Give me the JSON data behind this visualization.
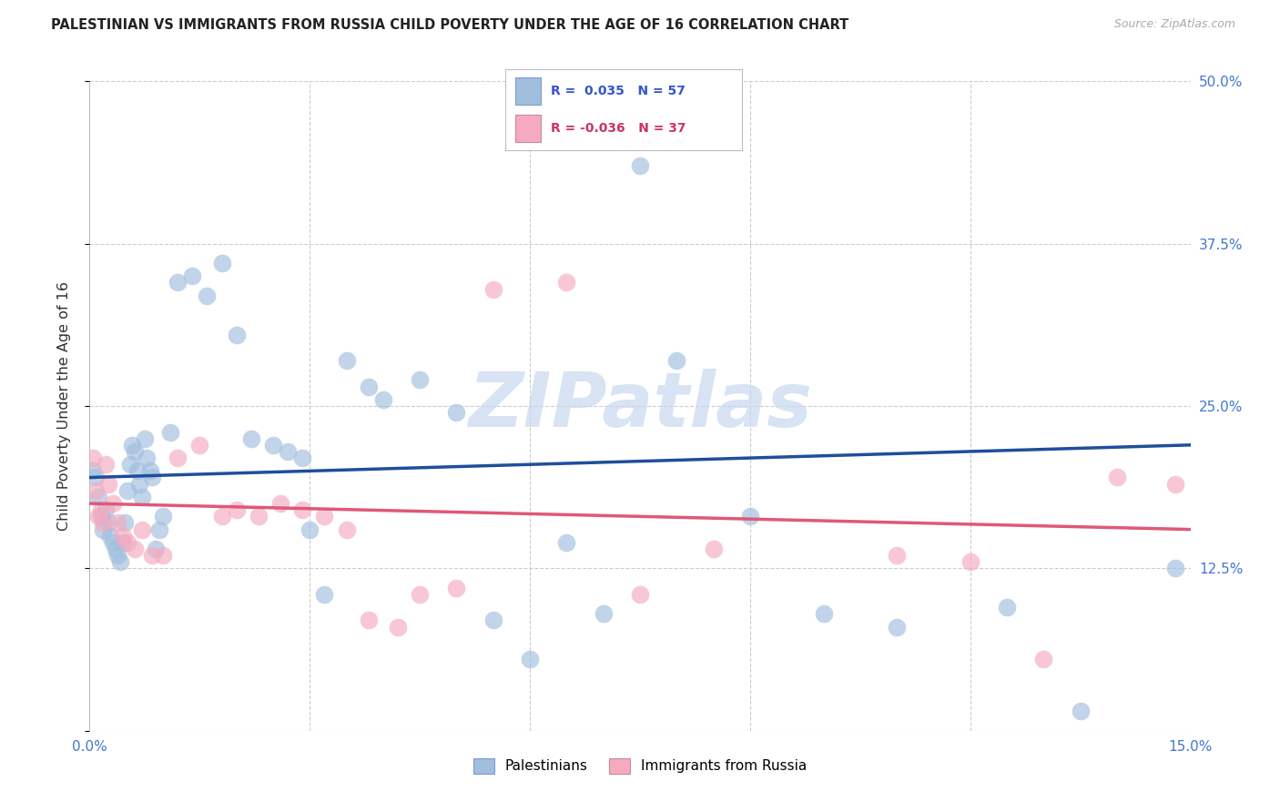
{
  "title": "PALESTINIAN VS IMMIGRANTS FROM RUSSIA CHILD POVERTY UNDER THE AGE OF 16 CORRELATION CHART",
  "source": "Source: ZipAtlas.com",
  "ylabel": "Child Poverty Under the Age of 16",
  "xlim": [
    0.0,
    15.0
  ],
  "ylim": [
    0.0,
    50.0
  ],
  "ytick_values": [
    0.0,
    12.5,
    25.0,
    37.5,
    50.0
  ],
  "ytick_labels_right": [
    "",
    "12.5%",
    "25.0%",
    "37.5%",
    "50.0%"
  ],
  "xtick_vals": [
    0.0,
    3.0,
    6.0,
    9.0,
    12.0,
    15.0
  ],
  "xtick_labels": [
    "0.0%",
    "",
    "",
    "",
    "",
    "15.0%"
  ],
  "legend1_label": "Palestinians",
  "legend2_label": "Immigrants from Russia",
  "r1": "0.035",
  "n1": "57",
  "r2": "-0.036",
  "n2": "37",
  "blue_color": "#a0bede",
  "pink_color": "#f5aabf",
  "line_blue": "#1f4e9c",
  "line_pink": "#e05878",
  "watermark_color": "#c8d8ee",
  "grid_color": "#cccccc",
  "tick_color": "#4477cc",
  "blue_x": [
    0.05,
    0.08,
    0.12,
    0.15,
    0.18,
    0.22,
    0.25,
    0.28,
    0.32,
    0.35,
    0.38,
    0.42,
    0.45,
    0.48,
    0.52,
    0.55,
    0.58,
    0.62,
    0.65,
    0.68,
    0.72,
    0.75,
    0.78,
    0.82,
    0.85,
    0.9,
    0.95,
    1.0,
    1.1,
    1.2,
    1.4,
    1.6,
    1.8,
    2.0,
    2.2,
    2.5,
    2.7,
    2.9,
    3.0,
    3.2,
    3.5,
    3.8,
    4.0,
    4.5,
    5.0,
    5.5,
    6.0,
    6.5,
    7.0,
    7.5,
    8.0,
    9.0,
    10.0,
    11.0,
    12.5,
    13.5,
    14.8
  ],
  "blue_y": [
    20.0,
    19.5,
    18.0,
    16.5,
    15.5,
    17.0,
    16.0,
    15.0,
    14.5,
    14.0,
    13.5,
    13.0,
    14.5,
    16.0,
    18.5,
    20.5,
    22.0,
    21.5,
    20.0,
    19.0,
    18.0,
    22.5,
    21.0,
    20.0,
    19.5,
    14.0,
    15.5,
    16.5,
    23.0,
    34.5,
    35.0,
    33.5,
    36.0,
    30.5,
    22.5,
    22.0,
    21.5,
    21.0,
    15.5,
    10.5,
    28.5,
    26.5,
    25.5,
    27.0,
    24.5,
    8.5,
    5.5,
    14.5,
    9.0,
    43.5,
    28.5,
    16.5,
    9.0,
    8.0,
    9.5,
    1.5,
    12.5
  ],
  "pink_x": [
    0.05,
    0.08,
    0.12,
    0.15,
    0.18,
    0.22,
    0.25,
    0.32,
    0.38,
    0.45,
    0.52,
    0.62,
    0.72,
    0.85,
    1.0,
    1.2,
    1.5,
    1.8,
    2.0,
    2.3,
    2.6,
    2.9,
    3.2,
    3.5,
    3.8,
    4.2,
    4.5,
    5.0,
    5.5,
    6.5,
    7.5,
    8.5,
    11.0,
    12.0,
    13.0,
    14.0,
    14.8
  ],
  "pink_y": [
    21.0,
    18.5,
    16.5,
    17.0,
    16.0,
    20.5,
    19.0,
    17.5,
    16.0,
    15.0,
    14.5,
    14.0,
    15.5,
    13.5,
    13.5,
    21.0,
    22.0,
    16.5,
    17.0,
    16.5,
    17.5,
    17.0,
    16.5,
    15.5,
    8.5,
    8.0,
    10.5,
    11.0,
    34.0,
    34.5,
    10.5,
    14.0,
    13.5,
    13.0,
    5.5,
    19.5,
    19.0
  ]
}
